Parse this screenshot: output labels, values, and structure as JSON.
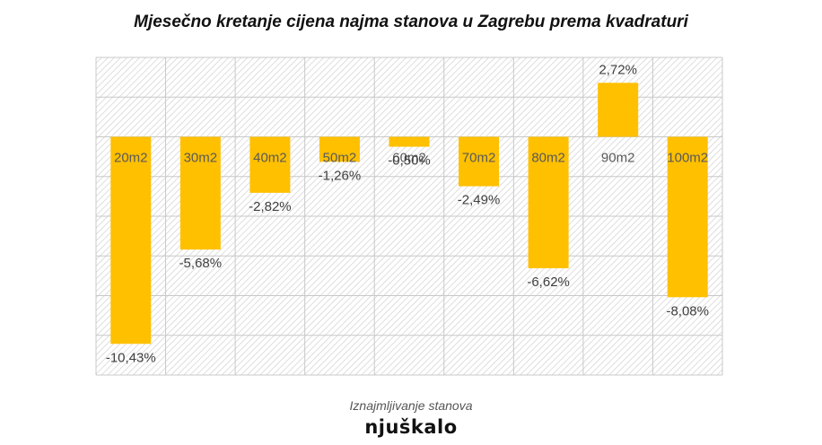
{
  "chart_data": {
    "type": "bar",
    "title": "Mjesečno kretanje cijena najma stanova u Zagrebu prema kvadraturi",
    "categories": [
      "20m2",
      "30m2",
      "40m2",
      "50m2",
      "60m2",
      "70m2",
      "80m2",
      "90m2",
      "100m2"
    ],
    "values": [
      -10.43,
      -5.68,
      -2.82,
      -1.26,
      -0.5,
      -2.49,
      -6.62,
      2.72,
      -8.08
    ],
    "value_labels": [
      "-10,43%",
      "-5,68%",
      "-2,82%",
      "-1,26%",
      "-0,50%",
      "-2,49%",
      "-6,62%",
      "2,72%",
      "-8,08%"
    ],
    "ylim": [
      -12,
      4
    ],
    "grid": true,
    "bar_color": "#FFC000",
    "xlabel": "",
    "ylabel": ""
  },
  "footer": {
    "caption": "Iznajmljivanje stanova",
    "logo": "njuškalo"
  }
}
